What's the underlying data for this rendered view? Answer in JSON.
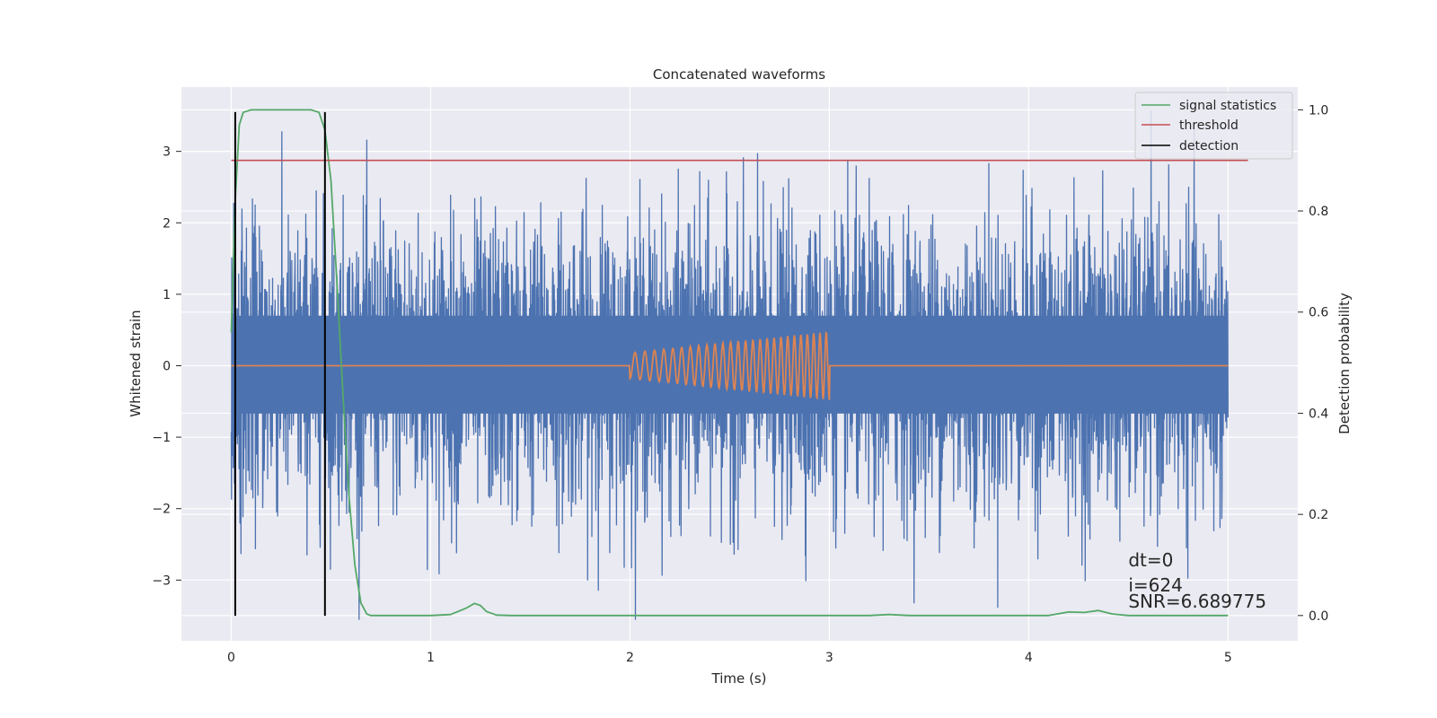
{
  "chart_data": {
    "type": "line",
    "title": "Concatenated waveforms",
    "xlabel": "Time (s)",
    "ylabel": "Whitened strain",
    "y2label": "Detection probability",
    "xlim": [
      -0.25,
      5.35
    ],
    "ylim": [
      -3.85,
      3.9
    ],
    "y2lim": [
      -0.05,
      1.045
    ],
    "x_ticks": [
      0,
      1,
      2,
      3,
      4,
      5
    ],
    "y_ticks": [
      -3,
      -2,
      -1,
      0,
      1,
      2,
      3
    ],
    "y2_ticks": [
      0.0,
      0.2,
      0.4,
      0.6,
      0.8,
      1.0
    ],
    "x_tick_labels": [
      "0",
      "1",
      "2",
      "3",
      "4",
      "5"
    ],
    "y_tick_labels": [
      "−3",
      "−2",
      "−1",
      "0",
      "1",
      "2",
      "3"
    ],
    "y2_tick_labels": [
      "0.0",
      "0.2",
      "0.4",
      "0.6",
      "0.8",
      "1.0"
    ],
    "grid": true,
    "legend_position": "top-right",
    "legend": [
      "signal statistics",
      "threshold",
      "detection"
    ],
    "noise": {
      "x_range": [
        0,
        5
      ],
      "band": [
        -0.67,
        0.7
      ],
      "spike_range": [
        -3.55,
        3.6
      ]
    },
    "injected_signal": {
      "x_range": [
        2.0,
        3.0
      ],
      "amplitude_start": 0.18,
      "amplitude_end": 0.48,
      "cycles": 26
    },
    "signal_statistics": {
      "axis": "right",
      "points": [
        [
          0,
          0.56
        ],
        [
          0.02,
          0.82
        ],
        [
          0.04,
          0.97
        ],
        [
          0.06,
          0.995
        ],
        [
          0.1,
          1.0
        ],
        [
          0.2,
          1.0
        ],
        [
          0.3,
          1.0
        ],
        [
          0.4,
          1.0
        ],
        [
          0.44,
          0.995
        ],
        [
          0.47,
          0.96
        ],
        [
          0.5,
          0.86
        ],
        [
          0.53,
          0.66
        ],
        [
          0.56,
          0.44
        ],
        [
          0.59,
          0.24
        ],
        [
          0.62,
          0.1
        ],
        [
          0.65,
          0.025
        ],
        [
          0.68,
          0.003
        ],
        [
          0.7,
          0.0
        ],
        [
          1.0,
          0.0
        ],
        [
          1.1,
          0.002
        ],
        [
          1.18,
          0.015
        ],
        [
          1.22,
          0.024
        ],
        [
          1.25,
          0.02
        ],
        [
          1.28,
          0.008
        ],
        [
          1.33,
          0.001
        ],
        [
          1.4,
          0.0
        ],
        [
          3.2,
          0.0
        ],
        [
          3.3,
          0.002
        ],
        [
          3.4,
          0.0
        ],
        [
          4.1,
          0.0
        ],
        [
          4.2,
          0.007
        ],
        [
          4.28,
          0.006
        ],
        [
          4.35,
          0.01
        ],
        [
          4.42,
          0.003
        ],
        [
          4.5,
          0.0
        ],
        [
          5.0,
          0.0
        ]
      ]
    },
    "threshold": {
      "axis": "right",
      "value": 0.9,
      "x_range": [
        0,
        5.1
      ]
    },
    "detections": {
      "x": [
        0.02,
        0.47
      ],
      "y_range": [
        -3.5,
        3.55
      ]
    },
    "annotations": [
      "dt=0",
      "i=624",
      "SNR=6.689775"
    ],
    "annotation_x": 4.5,
    "colors": {
      "background": "#eaeaf2",
      "grid": "#ffffff",
      "noise": "#4c72b0",
      "injected_signal": "#dd8452",
      "signal_statistics": "#55a868",
      "threshold": "#c44e52",
      "detection": "#000000",
      "text": "#262626"
    }
  }
}
